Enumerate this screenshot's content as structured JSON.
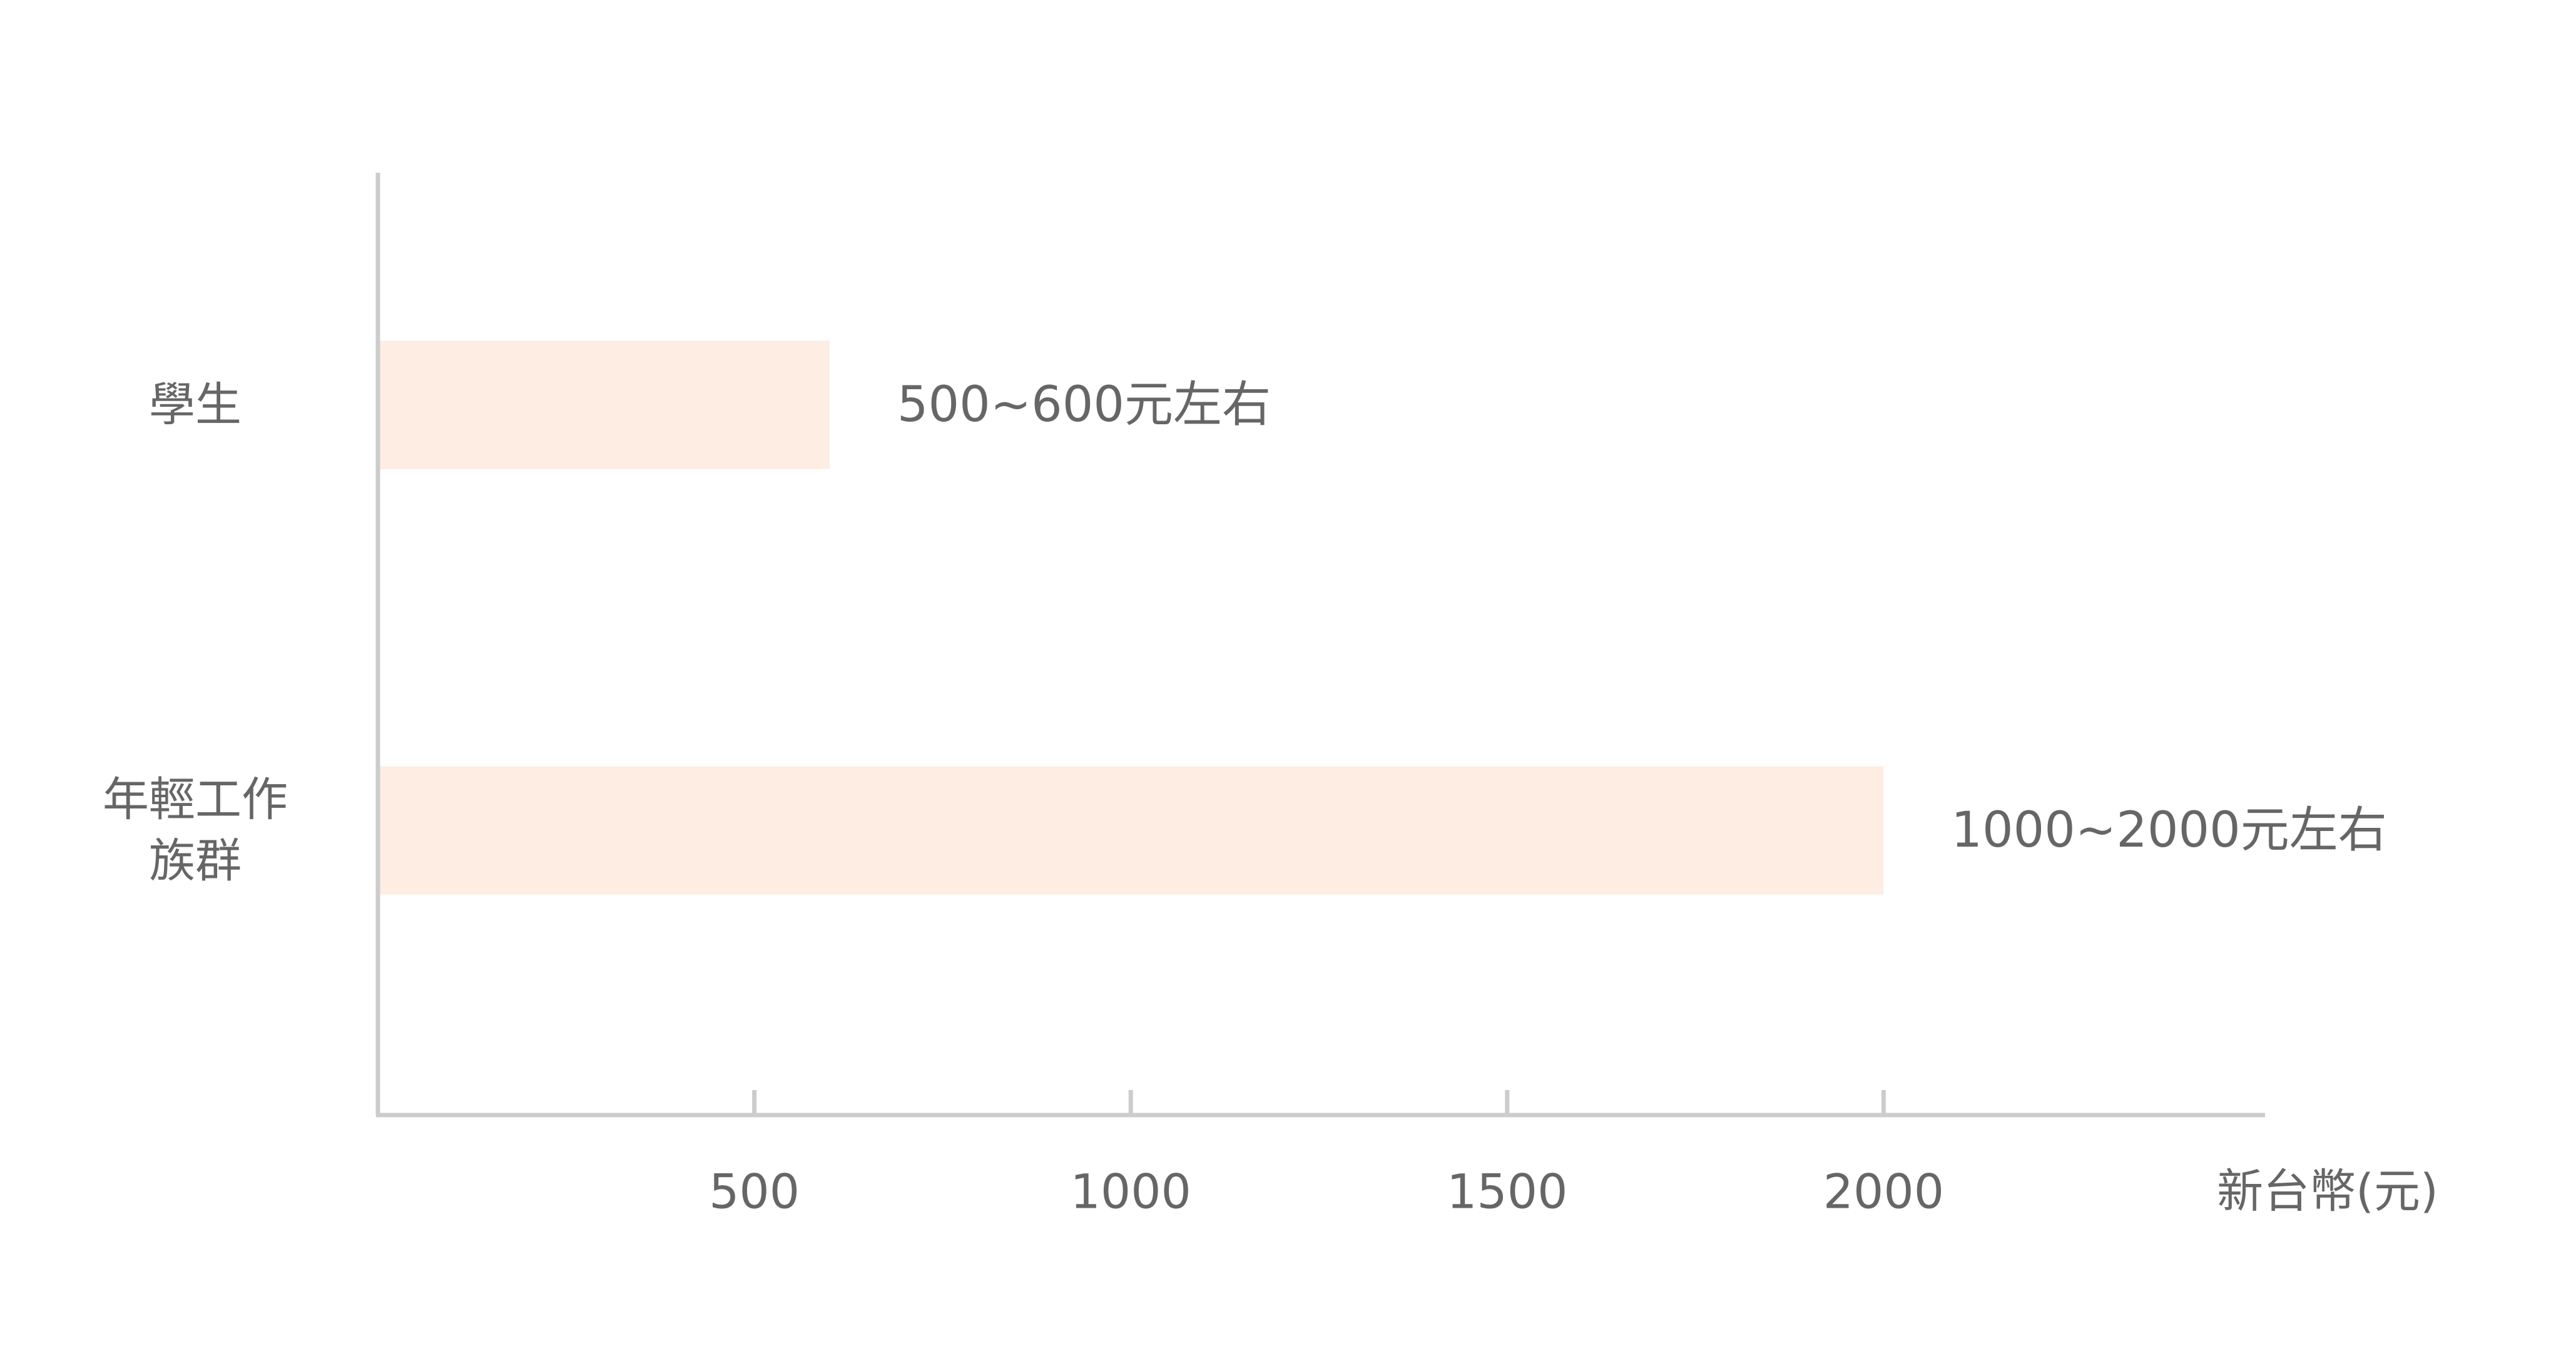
{
  "chart_data": {
    "type": "bar",
    "orientation": "horizontal",
    "categories": [
      {
        "lines": [
          "學生"
        ]
      },
      {
        "lines": [
          "年輕工作",
          "族群"
        ]
      }
    ],
    "values": [
      600,
      2000
    ],
    "bar_labels": [
      "500~600元左右",
      "1000~2000元左右"
    ],
    "xlabel": "新台幣(元)",
    "xticks": [
      500,
      1000,
      1500,
      2000
    ],
    "xlim": [
      0,
      2500
    ],
    "grid": false,
    "legend": "none",
    "colors": {
      "bar": "#fdede2",
      "axis": "#cccccc",
      "text": "#666666"
    }
  }
}
